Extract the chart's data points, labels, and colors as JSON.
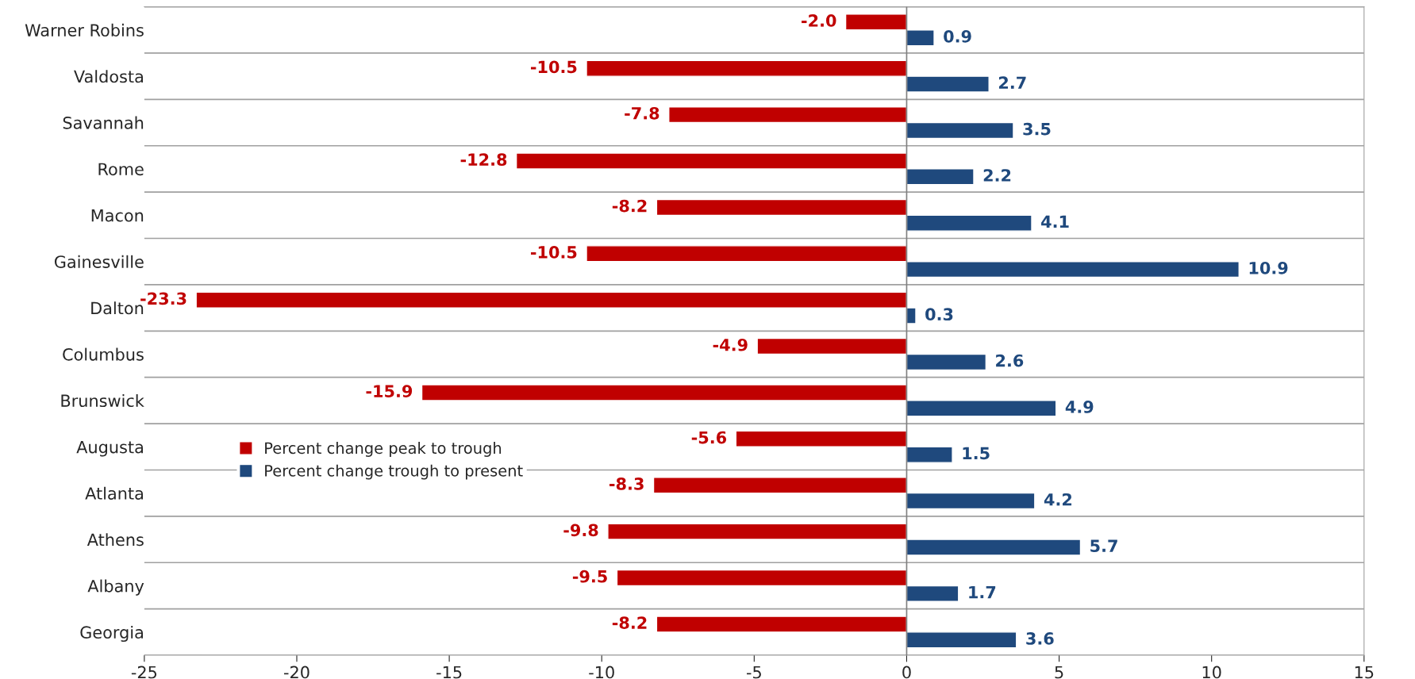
{
  "chart_data": {
    "type": "bar",
    "orientation": "horizontal",
    "categories": [
      "Warner Robins",
      "Valdosta",
      "Savannah",
      "Rome",
      "Macon",
      "Gainesville",
      "Dalton",
      "Columbus",
      "Brunswick",
      "Augusta",
      "Atlanta",
      "Athens",
      "Albany",
      "Georgia"
    ],
    "series": [
      {
        "name": "Percent change peak to trough",
        "color": "#c00000",
        "values": [
          -2.0,
          -10.5,
          -7.8,
          -12.8,
          -8.2,
          -10.5,
          -23.3,
          -4.9,
          -15.9,
          -5.6,
          -8.3,
          -9.8,
          -9.5,
          -8.2
        ],
        "value_labels": [
          "-2.0",
          "-10.5",
          "-7.8",
          "-12.8",
          "-8.2",
          "-10.5",
          "-23.3",
          "-4.9",
          "-15.9",
          "-5.6",
          "-8.3",
          "-9.8",
          "-9.5",
          "-8.2"
        ]
      },
      {
        "name": "Percent change trough to present",
        "color": "#1f497d",
        "values": [
          0.9,
          2.7,
          3.5,
          2.2,
          4.1,
          10.9,
          0.3,
          2.6,
          4.9,
          1.5,
          4.2,
          5.7,
          1.7,
          3.6
        ],
        "value_labels": [
          "0.9",
          "2.7",
          "3.5",
          "2.2",
          "4.1",
          "10.9",
          "0.3",
          "2.6",
          "4.9",
          "1.5",
          "4.2",
          "5.7",
          "1.7",
          "3.6"
        ]
      }
    ],
    "xlim": [
      -25,
      15
    ],
    "xticks": [
      -25,
      -20,
      -15,
      -10,
      -5,
      0,
      5,
      10,
      15
    ],
    "grid": "y",
    "legend": "left"
  }
}
